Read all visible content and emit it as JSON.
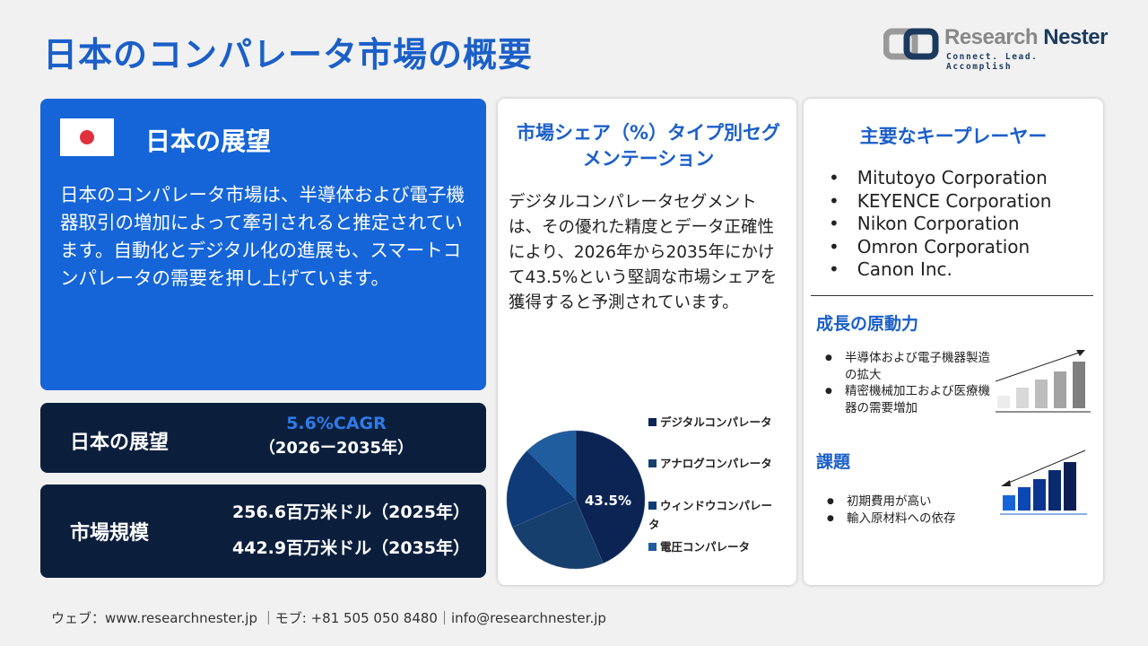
{
  "title": "日本のコンパレータ市場の概要",
  "logo": {
    "name1": "Research",
    "name2": "Nester",
    "tagline": "Connect. Lead. Accomplish"
  },
  "outlook": {
    "heading": "日本の展望",
    "text": "日本のコンパレータ市場は、半導体および電子機器取引の増加によって牽引されると推定されています。自動化とデジタル化の進展も、スマートコンパレータの需要を押し上げています。"
  },
  "cagr": {
    "label": "日本の展望",
    "value": "5.6%CAGR",
    "period": "（2026ー2035年）"
  },
  "market_size": {
    "label": "市場規模",
    "v2025": "256.6百万米ドル（2025年）",
    "v2035": "442.9百万米ドル（2035年）"
  },
  "segment": {
    "heading": "市場シェア（%）タイプ別セグメンテーション",
    "text": "デジタルコンパレータセグメントは、その優れた精度とデータ正確性により、2026年から2035年にかけて43.5%という堅調な市場シェアを獲得すると予測されています。"
  },
  "chart_data": {
    "type": "pie",
    "title": "",
    "labels": [
      "デジタルコンパレータ",
      "アナログコンパレータ",
      "ウィンドウコンパレータ",
      "電圧コンパレータ"
    ],
    "values": [
      43.5,
      25,
      19,
      12.5
    ],
    "data_label": "43.5%",
    "colors": [
      "#0c2454",
      "#173f6e",
      "#0f3c78",
      "#1f5d9e"
    ],
    "legend": "right"
  },
  "players": {
    "heading": "主要なキープレーヤー",
    "items": [
      "Mitutoyo Corporation",
      "KEYENCE Corporation",
      "Nikon Corporation",
      "Omron Corporation",
      "Canon Inc."
    ]
  },
  "drivers": {
    "heading": "成長の原動力",
    "items": [
      "半導体および電子機器製造の拡大",
      "精密機械加工および医療機器の需要増加"
    ]
  },
  "challenges": {
    "heading": "課題",
    "items": [
      "初期費用が高い",
      "輸入原材料への依存"
    ]
  },
  "footer": "ウェブ：www.researchnester.jp ｜モブ: +81 505 050 8480｜info@researchnester.jp"
}
